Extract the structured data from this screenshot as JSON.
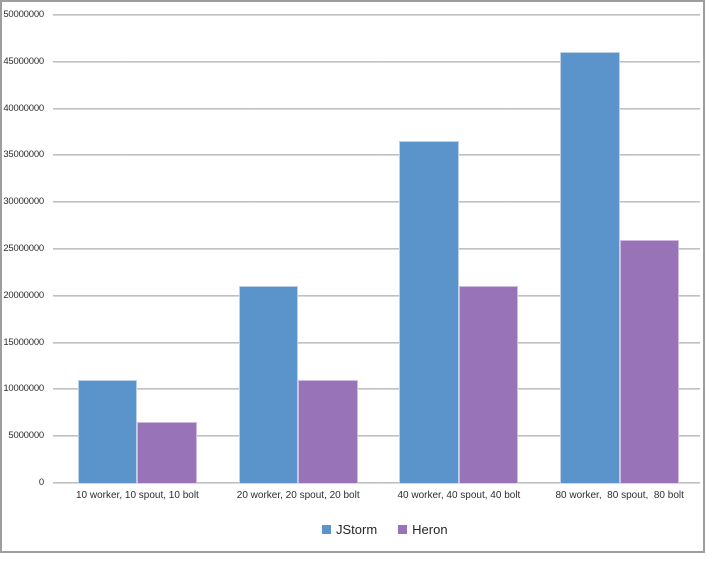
{
  "chart_data": {
    "type": "bar",
    "title": "",
    "xlabel": "",
    "ylabel": "",
    "categories": [
      "10 worker, 10 spout, 10 bolt",
      "20 worker, 20 spout, 20 bolt",
      "40 worker, 40 spout, 40 bolt",
      "80 worker,  80 spout,  80 bolt"
    ],
    "series": [
      {
        "name": "JStorm",
        "color": "#5b93cb",
        "border_color": "#bdd0ea",
        "values": [
          11000000,
          21000000,
          36500000,
          46000000
        ]
      },
      {
        "name": "Heron",
        "color": "#9973b8",
        "border_color": "#cfbbe2",
        "values": [
          6500000,
          11000000,
          21000000,
          26000000
        ]
      }
    ],
    "ylim": [
      0,
      50000000
    ],
    "ytick_step": 5000000,
    "ytick_labels": [
      "0",
      "5000000",
      "10000000",
      "15000000",
      "20000000",
      "25000000",
      "30000000",
      "35000000",
      "40000000",
      "45000000",
      "50000000"
    ],
    "grid": true,
    "legend_position": "bottom"
  },
  "colors": {
    "gridline": "#b5b5b5",
    "gridline_light": "#e4e4e4",
    "frame_border": "#9e9e9e",
    "text": "#2d2d2d",
    "background": "#ffffff"
  }
}
